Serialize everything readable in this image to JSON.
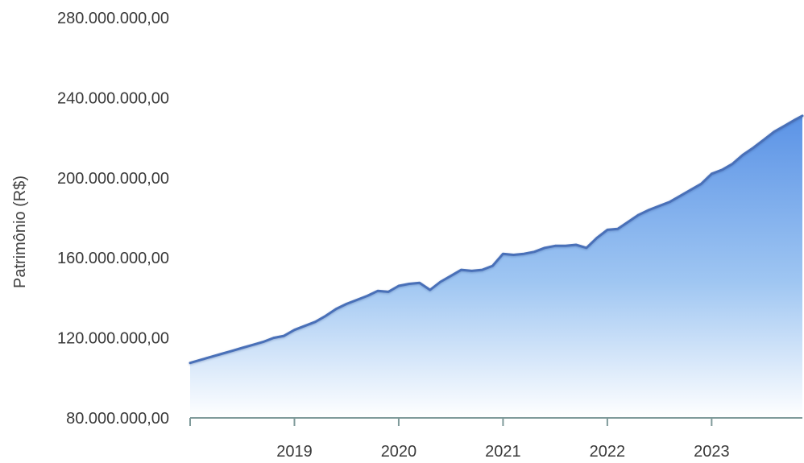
{
  "chart_data": {
    "type": "area",
    "title": "",
    "xlabel": "",
    "ylabel": "Patrimônio (R$)",
    "yticks": [
      {
        "value": 80000000,
        "label": "80.000.000,00"
      },
      {
        "value": 120000000,
        "label": "120.000.000,00"
      },
      {
        "value": 160000000,
        "label": "160.000.000,00"
      },
      {
        "value": 200000000,
        "label": "200.000.000,00"
      },
      {
        "value": 240000000,
        "label": "240.000.000,00"
      },
      {
        "value": 280000000,
        "label": "280.000.000,00"
      }
    ],
    "xticks": [
      {
        "value": 2018.0,
        "label": ""
      },
      {
        "value": 2019.0,
        "label": "2019"
      },
      {
        "value": 2020.0,
        "label": "2020"
      },
      {
        "value": 2021.0,
        "label": "2021"
      },
      {
        "value": 2022.0,
        "label": "2022"
      },
      {
        "value": 2023.0,
        "label": "2023"
      }
    ],
    "xlim": [
      2018.0,
      2023.87
    ],
    "ylim": [
      80000000,
      280000000
    ],
    "grid": false,
    "colors": {
      "line": "#4a6fb8",
      "fill_top": "#5b93e6",
      "fill_bottom": "#ffffff",
      "axis": "#7f9a9a",
      "text": "#3a3a3a"
    },
    "series": [
      {
        "x": [
          2018.0,
          2018.1,
          2018.2,
          2018.3,
          2018.4,
          2018.5,
          2018.6,
          2018.7,
          2018.8,
          2018.9,
          2019.0,
          2019.1,
          2019.2,
          2019.3,
          2019.4,
          2019.5,
          2019.6,
          2019.7,
          2019.8,
          2019.9,
          2020.0,
          2020.1,
          2020.2,
          2020.3,
          2020.4,
          2020.5,
          2020.6,
          2020.7,
          2020.8,
          2020.9,
          2021.0,
          2021.1,
          2021.2,
          2021.3,
          2021.4,
          2021.5,
          2021.6,
          2021.7,
          2021.8,
          2021.9,
          2022.0,
          2022.1,
          2022.2,
          2022.3,
          2022.4,
          2022.5,
          2022.6,
          2022.7,
          2022.8,
          2022.9,
          2023.0,
          2023.1,
          2023.2,
          2023.3,
          2023.4,
          2023.5,
          2023.6,
          2023.7,
          2023.8,
          2023.87
        ],
        "values": [
          107500000,
          109000000,
          110500000,
          112000000,
          113500000,
          115000000,
          116500000,
          118000000,
          120000000,
          121000000,
          124000000,
          126000000,
          128000000,
          131000000,
          134500000,
          137000000,
          139000000,
          141000000,
          143500000,
          143000000,
          146000000,
          147000000,
          147500000,
          144000000,
          148000000,
          151000000,
          154000000,
          153500000,
          154000000,
          156000000,
          162000000,
          161500000,
          162000000,
          163000000,
          165000000,
          166000000,
          166000000,
          166500000,
          165000000,
          170000000,
          174000000,
          174500000,
          178000000,
          181500000,
          184000000,
          186000000,
          188000000,
          191000000,
          194000000,
          197000000,
          202000000,
          204000000,
          207000000,
          211500000,
          215000000,
          219000000,
          223000000,
          226000000,
          229000000,
          231000000
        ]
      }
    ]
  }
}
